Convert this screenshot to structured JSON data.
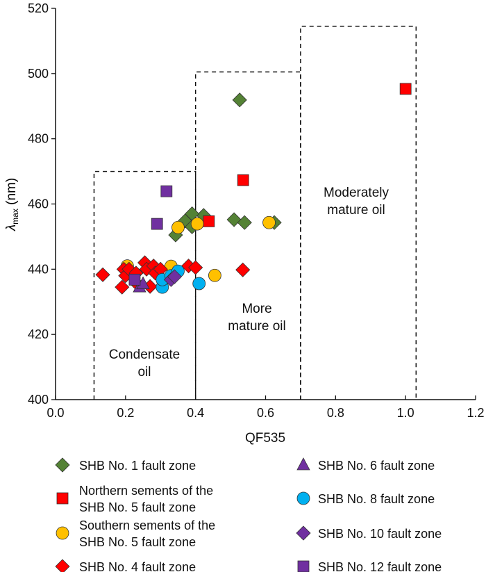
{
  "chart_data": {
    "type": "scatter",
    "xlabel": "QF535",
    "ylabel": {
      "symbol": "λ",
      "sub": "max",
      "unit": " (nm)"
    },
    "xlim": [
      0.0,
      1.2
    ],
    "ylim": [
      400,
      520
    ],
    "xticks": [
      "0.0",
      "0.2",
      "0.4",
      "0.6",
      "0.8",
      "1.0",
      "1.2"
    ],
    "yticks": [
      "400",
      "420",
      "440",
      "460",
      "480",
      "500",
      "520"
    ],
    "grid": false,
    "legend_position": "bottom",
    "regions": [
      {
        "label": [
          "Condensate",
          "oil"
        ],
        "x": [
          0.11,
          0.4
        ],
        "y": [
          400,
          470
        ]
      },
      {
        "label": [
          "More",
          "mature oil"
        ],
        "x": [
          0.4,
          0.7
        ],
        "y": [
          400,
          500.5
        ]
      },
      {
        "label": [
          "Moderately",
          "mature oil"
        ],
        "x": [
          0.7,
          1.03
        ],
        "y": [
          400,
          514.5
        ]
      }
    ],
    "series": [
      {
        "name": [
          "SHB  No. 1 fault zone"
        ],
        "marker": "diamond",
        "color": "#548235",
        "points": [
          [
            0.526,
            491.9
          ],
          [
            0.51,
            455.2
          ],
          [
            0.54,
            454.3
          ],
          [
            0.625,
            454.3
          ],
          [
            0.423,
            456.5
          ],
          [
            0.39,
            457
          ],
          [
            0.37,
            454.8
          ],
          [
            0.343,
            450.5
          ],
          [
            0.39,
            453
          ]
        ]
      },
      {
        "name": [
          "Northern sements of the",
          "SHB  No. 5 fault zone"
        ],
        "marker": "square",
        "color": "#ff0000",
        "points": [
          [
            0.438,
            454.7
          ],
          [
            0.536,
            467.3
          ],
          [
            1.0,
            495.3
          ]
        ]
      },
      {
        "name": [
          "Southern sements of the",
          "SHB  No. 5 fault zone"
        ],
        "marker": "circle",
        "color": "#ffc000",
        "points": [
          [
            0.205,
            441
          ],
          [
            0.33,
            440.9
          ],
          [
            0.35,
            452.8
          ],
          [
            0.405,
            453.9
          ],
          [
            0.61,
            454.3
          ],
          [
            0.455,
            438.1
          ]
        ]
      },
      {
        "name": [
          "SHB  No. 4 fault zone"
        ],
        "marker": "diamond",
        "color": "#ff0000",
        "points": [
          [
            0.135,
            438.3
          ],
          [
            0.19,
            434.5
          ],
          [
            0.195,
            440
          ],
          [
            0.2,
            438
          ],
          [
            0.21,
            440
          ],
          [
            0.23,
            438.8
          ],
          [
            0.23,
            435.8
          ],
          [
            0.255,
            442
          ],
          [
            0.26,
            440
          ],
          [
            0.27,
            434.7
          ],
          [
            0.28,
            441
          ],
          [
            0.285,
            438.8
          ],
          [
            0.3,
            440
          ],
          [
            0.38,
            441
          ],
          [
            0.4,
            440.5
          ],
          [
            0.535,
            439.8
          ]
        ]
      },
      {
        "name": [
          "SHB  No. 6 fault zone"
        ],
        "marker": "triangle",
        "color": "#7030a0",
        "points": [
          [
            0.24,
            434.5
          ],
          [
            0.25,
            435.5
          ]
        ]
      },
      {
        "name": [
          "SHB  No. 8 fault zone"
        ],
        "marker": "circle",
        "color": "#00b0f0",
        "points": [
          [
            0.305,
            434.5
          ],
          [
            0.305,
            436.8
          ],
          [
            0.33,
            438
          ],
          [
            0.35,
            439.4
          ],
          [
            0.41,
            435.6
          ]
        ]
      },
      {
        "name": [
          "SHB  No. 10 fault zone"
        ],
        "marker": "diamond",
        "color": "#7030a0",
        "points": [
          [
            0.33,
            436.8
          ],
          [
            0.34,
            437.7
          ]
        ]
      },
      {
        "name": [
          "SHB  No. 12 fault zone"
        ],
        "marker": "square",
        "color": "#7030a0",
        "points": [
          [
            0.317,
            463.9
          ],
          [
            0.29,
            453.9
          ],
          [
            0.226,
            436.8
          ]
        ]
      }
    ]
  }
}
